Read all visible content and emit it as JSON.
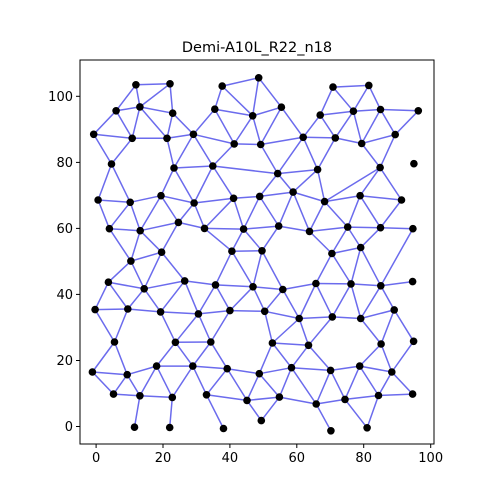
{
  "chart_data": {
    "type": "graph",
    "title": "Demi-A10L_R22_n18",
    "xlabel": "",
    "ylabel": "",
    "xlim": [
      -4.8,
      101
    ],
    "ylim": [
      -5.3,
      111
    ],
    "xticks": [
      0,
      20,
      40,
      60,
      80,
      100
    ],
    "yticks": [
      0,
      20,
      40,
      60,
      80,
      100
    ],
    "grid": false,
    "edge_color": "#6b6bed",
    "node_color": "#000000",
    "nodes": [
      [
        11.9,
        103.5
      ],
      [
        22.1,
        103.8
      ],
      [
        37.7,
        103.1
      ],
      [
        48.6,
        105.6
      ],
      [
        70.8,
        102.8
      ],
      [
        81.5,
        103.3
      ],
      [
        6.0,
        95.6
      ],
      [
        13.1,
        96.8
      ],
      [
        22.9,
        94.9
      ],
      [
        35.5,
        96.1
      ],
      [
        46.8,
        94.1
      ],
      [
        55.4,
        96.7
      ],
      [
        67.0,
        94.3
      ],
      [
        76.9,
        95.5
      ],
      [
        85.0,
        96.0
      ],
      [
        96.3,
        95.6
      ],
      [
        -0.7,
        88.5
      ],
      [
        10.8,
        87.3
      ],
      [
        21.2,
        87.3
      ],
      [
        29.1,
        88.5
      ],
      [
        41.3,
        85.6
      ],
      [
        49.2,
        85.4
      ],
      [
        61.9,
        87.6
      ],
      [
        71.5,
        87.4
      ],
      [
        79.4,
        85.7
      ],
      [
        89.4,
        88.4
      ],
      [
        4.6,
        79.5
      ],
      [
        23.3,
        78.3
      ],
      [
        34.9,
        78.9
      ],
      [
        54.3,
        76.6
      ],
      [
        66.2,
        77.8
      ],
      [
        84.9,
        78.4
      ],
      [
        95.0,
        79.6
      ],
      [
        0.6,
        68.6
      ],
      [
        10.2,
        67.9
      ],
      [
        19.4,
        69.9
      ],
      [
        29.3,
        67.7
      ],
      [
        41.1,
        69.1
      ],
      [
        48.9,
        69.7
      ],
      [
        58.9,
        71.0
      ],
      [
        68.3,
        68.1
      ],
      [
        78.9,
        69.9
      ],
      [
        91.3,
        68.6
      ],
      [
        4.0,
        59.9
      ],
      [
        13.2,
        59.3
      ],
      [
        24.6,
        61.8
      ],
      [
        32.4,
        60.0
      ],
      [
        44.1,
        59.8
      ],
      [
        54.6,
        60.7
      ],
      [
        63.8,
        59.1
      ],
      [
        75.2,
        60.4
      ],
      [
        85.0,
        60.2
      ],
      [
        94.7,
        59.9
      ],
      [
        10.4,
        50.1
      ],
      [
        19.6,
        52.8
      ],
      [
        40.6,
        53.1
      ],
      [
        49.6,
        53.2
      ],
      [
        70.5,
        52.4
      ],
      [
        79.1,
        54.2
      ],
      [
        3.7,
        43.7
      ],
      [
        14.4,
        41.7
      ],
      [
        26.5,
        44.1
      ],
      [
        35.7,
        42.9
      ],
      [
        46.9,
        42.3
      ],
      [
        55.8,
        41.5
      ],
      [
        65.7,
        43.3
      ],
      [
        76.2,
        43.2
      ],
      [
        85.1,
        42.6
      ],
      [
        94.6,
        43.9
      ],
      [
        -0.3,
        35.4
      ],
      [
        9.5,
        35.6
      ],
      [
        19.3,
        34.7
      ],
      [
        30.6,
        34.1
      ],
      [
        40.0,
        35.1
      ],
      [
        50.4,
        34.9
      ],
      [
        60.7,
        32.7
      ],
      [
        70.6,
        33.2
      ],
      [
        79.1,
        32.7
      ],
      [
        89.1,
        35.3
      ],
      [
        5.5,
        25.6
      ],
      [
        23.7,
        25.5
      ],
      [
        34.3,
        25.6
      ],
      [
        52.7,
        25.3
      ],
      [
        63.5,
        24.6
      ],
      [
        85.2,
        25.0
      ],
      [
        94.9,
        25.8
      ],
      [
        -1.1,
        16.5
      ],
      [
        9.3,
        15.7
      ],
      [
        18.1,
        18.3
      ],
      [
        28.9,
        18.3
      ],
      [
        39.2,
        17.5
      ],
      [
        48.8,
        16.0
      ],
      [
        58.4,
        17.8
      ],
      [
        70.1,
        17.0
      ],
      [
        78.8,
        18.3
      ],
      [
        88.4,
        16.5
      ],
      [
        5.2,
        9.8
      ],
      [
        13.1,
        9.3
      ],
      [
        22.8,
        8.8
      ],
      [
        33.0,
        9.6
      ],
      [
        45.1,
        7.9
      ],
      [
        54.8,
        8.9
      ],
      [
        65.8,
        6.8
      ],
      [
        74.4,
        8.2
      ],
      [
        84.4,
        9.4
      ],
      [
        94.6,
        9.8
      ],
      [
        11.5,
        -0.2
      ],
      [
        22.0,
        -0.3
      ],
      [
        38.1,
        -0.6
      ],
      [
        49.4,
        1.8
      ],
      [
        70.2,
        -1.3
      ],
      [
        81.0,
        -0.4
      ]
    ],
    "edges": [
      [
        0,
        1
      ],
      [
        0,
        6
      ],
      [
        0,
        7
      ],
      [
        1,
        7
      ],
      [
        1,
        8
      ],
      [
        2,
        3
      ],
      [
        2,
        9
      ],
      [
        2,
        10
      ],
      [
        3,
        10
      ],
      [
        3,
        11
      ],
      [
        4,
        5
      ],
      [
        4,
        12
      ],
      [
        4,
        13
      ],
      [
        5,
        13
      ],
      [
        5,
        14
      ],
      [
        6,
        7
      ],
      [
        6,
        16
      ],
      [
        6,
        17
      ],
      [
        7,
        8
      ],
      [
        7,
        17
      ],
      [
        7,
        18
      ],
      [
        8,
        18
      ],
      [
        8,
        19
      ],
      [
        9,
        10
      ],
      [
        9,
        19
      ],
      [
        9,
        20
      ],
      [
        10,
        20
      ],
      [
        10,
        21
      ],
      [
        10,
        11
      ],
      [
        11,
        21
      ],
      [
        11,
        22
      ],
      [
        12,
        13
      ],
      [
        12,
        22
      ],
      [
        12,
        23
      ],
      [
        13,
        14
      ],
      [
        13,
        23
      ],
      [
        13,
        24
      ],
      [
        14,
        24
      ],
      [
        14,
        25
      ],
      [
        14,
        15
      ],
      [
        15,
        25
      ],
      [
        16,
        17
      ],
      [
        16,
        26
      ],
      [
        17,
        18
      ],
      [
        17,
        26
      ],
      [
        18,
        19
      ],
      [
        18,
        27
      ],
      [
        19,
        20
      ],
      [
        19,
        27
      ],
      [
        19,
        28
      ],
      [
        20,
        21
      ],
      [
        20,
        28
      ],
      [
        21,
        22
      ],
      [
        21,
        29
      ],
      [
        22,
        23
      ],
      [
        22,
        29
      ],
      [
        22,
        30
      ],
      [
        23,
        24
      ],
      [
        23,
        30
      ],
      [
        24,
        25
      ],
      [
        24,
        31
      ],
      [
        25,
        31
      ],
      [
        26,
        33
      ],
      [
        26,
        34
      ],
      [
        27,
        28
      ],
      [
        27,
        35
      ],
      [
        27,
        36
      ],
      [
        28,
        36
      ],
      [
        28,
        37
      ],
      [
        28,
        29
      ],
      [
        29,
        38
      ],
      [
        29,
        39
      ],
      [
        29,
        30
      ],
      [
        30,
        39
      ],
      [
        30,
        40
      ],
      [
        31,
        40
      ],
      [
        31,
        41
      ],
      [
        31,
        42
      ],
      [
        33,
        34
      ],
      [
        33,
        43
      ],
      [
        34,
        35
      ],
      [
        34,
        43
      ],
      [
        34,
        44
      ],
      [
        35,
        36
      ],
      [
        35,
        44
      ],
      [
        35,
        45
      ],
      [
        36,
        37
      ],
      [
        36,
        45
      ],
      [
        36,
        46
      ],
      [
        37,
        38
      ],
      [
        37,
        46
      ],
      [
        37,
        47
      ],
      [
        38,
        39
      ],
      [
        38,
        47
      ],
      [
        38,
        48
      ],
      [
        39,
        40
      ],
      [
        39,
        48
      ],
      [
        39,
        49
      ],
      [
        40,
        41
      ],
      [
        40,
        49
      ],
      [
        40,
        50
      ],
      [
        41,
        42
      ],
      [
        41,
        50
      ],
      [
        41,
        51
      ],
      [
        42,
        51
      ],
      [
        43,
        44
      ],
      [
        43,
        53
      ],
      [
        44,
        45
      ],
      [
        44,
        53
      ],
      [
        44,
        54
      ],
      [
        45,
        46
      ],
      [
        45,
        54
      ],
      [
        46,
        47
      ],
      [
        46,
        55
      ],
      [
        47,
        48
      ],
      [
        47,
        55
      ],
      [
        47,
        56
      ],
      [
        48,
        49
      ],
      [
        48,
        56
      ],
      [
        49,
        50
      ],
      [
        49,
        57
      ],
      [
        50,
        51
      ],
      [
        50,
        57
      ],
      [
        50,
        58
      ],
      [
        51,
        52
      ],
      [
        51,
        58
      ],
      [
        53,
        54
      ],
      [
        53,
        59
      ],
      [
        53,
        60
      ],
      [
        54,
        60
      ],
      [
        54,
        61
      ],
      [
        55,
        56
      ],
      [
        55,
        62
      ],
      [
        55,
        63
      ],
      [
        56,
        63
      ],
      [
        56,
        64
      ],
      [
        57,
        58
      ],
      [
        57,
        65
      ],
      [
        57,
        66
      ],
      [
        58,
        66
      ],
      [
        58,
        67
      ],
      [
        52,
        67
      ],
      [
        59,
        60
      ],
      [
        59,
        69
      ],
      [
        59,
        70
      ],
      [
        60,
        61
      ],
      [
        60,
        70
      ],
      [
        60,
        71
      ],
      [
        61,
        62
      ],
      [
        61,
        71
      ],
      [
        61,
        72
      ],
      [
        62,
        63
      ],
      [
        62,
        72
      ],
      [
        62,
        73
      ],
      [
        63,
        64
      ],
      [
        63,
        73
      ],
      [
        63,
        74
      ],
      [
        64,
        65
      ],
      [
        64,
        74
      ],
      [
        64,
        75
      ],
      [
        65,
        66
      ],
      [
        65,
        75
      ],
      [
        65,
        76
      ],
      [
        66,
        67
      ],
      [
        66,
        76
      ],
      [
        66,
        77
      ],
      [
        67,
        68
      ],
      [
        67,
        77
      ],
      [
        67,
        78
      ],
      [
        69,
        70
      ],
      [
        69,
        79
      ],
      [
        70,
        71
      ],
      [
        70,
        79
      ],
      [
        71,
        72
      ],
      [
        71,
        80
      ],
      [
        72,
        73
      ],
      [
        72,
        80
      ],
      [
        72,
        81
      ],
      [
        73,
        74
      ],
      [
        73,
        81
      ],
      [
        74,
        75
      ],
      [
        74,
        82
      ],
      [
        75,
        76
      ],
      [
        75,
        82
      ],
      [
        75,
        83
      ],
      [
        76,
        77
      ],
      [
        76,
        83
      ],
      [
        77,
        78
      ],
      [
        77,
        84
      ],
      [
        78,
        84
      ],
      [
        78,
        85
      ],
      [
        79,
        86
      ],
      [
        79,
        87
      ],
      [
        80,
        81
      ],
      [
        80,
        88
      ],
      [
        80,
        89
      ],
      [
        81,
        89
      ],
      [
        81,
        90
      ],
      [
        82,
        83
      ],
      [
        82,
        91
      ],
      [
        82,
        92
      ],
      [
        83,
        92
      ],
      [
        83,
        93
      ],
      [
        84,
        94
      ],
      [
        84,
        95
      ],
      [
        85,
        95
      ],
      [
        86,
        87
      ],
      [
        86,
        96
      ],
      [
        87,
        88
      ],
      [
        87,
        96
      ],
      [
        87,
        97
      ],
      [
        88,
        89
      ],
      [
        88,
        97
      ],
      [
        88,
        98
      ],
      [
        89,
        90
      ],
      [
        89,
        98
      ],
      [
        89,
        99
      ],
      [
        90,
        91
      ],
      [
        90,
        99
      ],
      [
        90,
        100
      ],
      [
        91,
        92
      ],
      [
        91,
        100
      ],
      [
        91,
        101
      ],
      [
        92,
        93
      ],
      [
        92,
        101
      ],
      [
        92,
        102
      ],
      [
        93,
        94
      ],
      [
        93,
        102
      ],
      [
        93,
        103
      ],
      [
        94,
        95
      ],
      [
        94,
        103
      ],
      [
        94,
        104
      ],
      [
        95,
        104
      ],
      [
        95,
        105
      ],
      [
        96,
        97
      ],
      [
        97,
        106
      ],
      [
        97,
        98
      ],
      [
        98,
        107
      ],
      [
        99,
        100
      ],
      [
        99,
        108
      ],
      [
        100,
        101
      ],
      [
        100,
        109
      ],
      [
        101,
        102
      ],
      [
        101,
        109
      ],
      [
        102,
        103
      ],
      [
        102,
        110
      ],
      [
        103,
        104
      ],
      [
        103,
        111
      ],
      [
        104,
        105
      ],
      [
        104,
        111
      ]
    ]
  }
}
